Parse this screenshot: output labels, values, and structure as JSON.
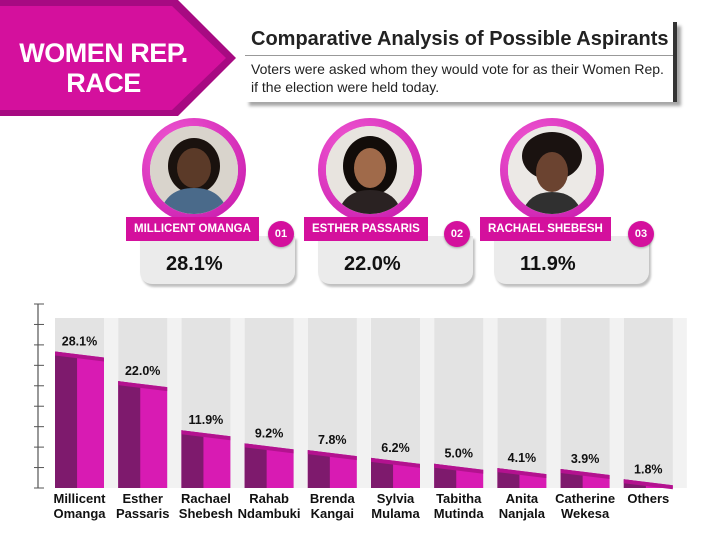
{
  "header": {
    "badge_line1": "WOMEN REP.",
    "badge_line2": "RACE",
    "title": "Comparative Analysis of Possible Aspirants",
    "subtitle": "Voters were asked whom they would vote for as their Women Rep. if the election were held today."
  },
  "candidates": [
    {
      "name": "MILLICENT OMANGA",
      "rank": "01",
      "pct": "28.1%"
    },
    {
      "name": "ESTHER PASSARIS",
      "rank": "02",
      "pct": "22.0%"
    },
    {
      "name": "RACHAEL SHEBESH",
      "rank": "03",
      "pct": "11.9%"
    }
  ],
  "colors": {
    "accent": "#d4109d",
    "bar_front": "#d81bb3",
    "bar_side": "#6e1a60",
    "bar_top": "#b3128f",
    "track": "#e3e3e3"
  },
  "chart_data": {
    "type": "bar",
    "categories": [
      [
        "Millicent",
        "Omanga"
      ],
      [
        "Esther",
        "Passaris"
      ],
      [
        "Rachael",
        "Shebesh"
      ],
      [
        "Rahab",
        "Ndambuki"
      ],
      [
        "Brenda",
        "Kangai"
      ],
      [
        "Sylvia",
        "Mulama"
      ],
      [
        "Tabitha",
        "Mutinda"
      ],
      [
        "Anita",
        "Nanjala"
      ],
      [
        "Catherine",
        "Wekesa"
      ],
      [
        "Others"
      ]
    ],
    "values": [
      28.1,
      22.0,
      11.9,
      9.2,
      7.8,
      6.2,
      5.0,
      4.1,
      3.9,
      1.8
    ],
    "value_labels": [
      "28.1%",
      "22.0%",
      "11.9%",
      "9.2%",
      "7.8%",
      "6.2%",
      "5.0%",
      "4.1%",
      "3.9%",
      "1.8%"
    ],
    "ylim": [
      0,
      35
    ]
  }
}
